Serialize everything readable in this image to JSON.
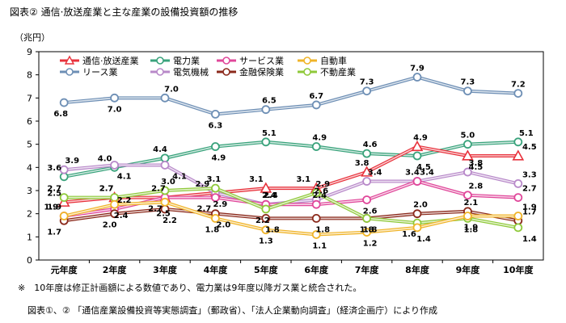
{
  "header": {
    "title": "図表② 通信·放送産業と主な産業の設備投資額の推移",
    "unit": "（兆円）"
  },
  "notes": {
    "note1": "※　10年度は修正計画額による数値であり、電力業は9年度以降ガス業と統合された。",
    "note2": "図表①、② 「通信産業設備投資等実態調査」（郵政省）、「法人企業動向調査」（経済企画庁）により作成"
  },
  "chart_data": {
    "type": "line",
    "title": "図表② 通信·放送産業と主な産業の設備投資額の推移",
    "ylabel": "（兆円）",
    "xlabel": "",
    "ylim": [
      0,
      9
    ],
    "yticks": [
      0,
      1,
      2,
      3,
      4,
      5,
      6,
      7,
      8,
      9
    ],
    "grid": false,
    "legend_position": "top-left",
    "categories": [
      "元年度",
      "2年度",
      "3年度",
      "4年度",
      "5年度",
      "6年度",
      "7年度",
      "8年度",
      "9年度",
      "10年度"
    ],
    "series": [
      {
        "name": "リース業",
        "color": "#6e8fb5",
        "marker": "circle",
        "values": [
          6.8,
          7.0,
          7.0,
          6.3,
          6.5,
          6.7,
          7.3,
          7.9,
          7.3,
          7.2
        ]
      },
      {
        "name": "電力業",
        "color": "#3aa37c",
        "marker": "circle",
        "values": [
          3.6,
          4.0,
          4.4,
          4.9,
          5.1,
          4.9,
          4.6,
          4.5,
          5.0,
          5.1
        ]
      },
      {
        "name": "通信·放送産業",
        "color": "#e8323c",
        "marker": "triangle",
        "values": [
          2.5,
          2.7,
          2.7,
          2.9,
          3.1,
          3.1,
          3.8,
          4.9,
          4.5,
          4.5
        ]
      },
      {
        "name": "電気機械",
        "color": "#b889c9",
        "marker": "circle",
        "values": [
          3.9,
          4.1,
          4.1,
          2.9,
          2.4,
          2.6,
          3.4,
          3.4,
          3.8,
          3.3
        ]
      },
      {
        "name": "サービス業",
        "color": "#e0479a",
        "marker": "circle",
        "values": [
          1.9,
          2.2,
          2.7,
          2.7,
          2.4,
          2.4,
          2.6,
          3.4,
          2.8,
          2.7
        ]
      },
      {
        "name": "金融保険業",
        "color": "#8b2a1c",
        "marker": "circle",
        "values": [
          1.7,
          2.0,
          2.2,
          2.0,
          1.8,
          1.8,
          1.8,
          2.0,
          2.1,
          1.7
        ]
      },
      {
        "name": "不動産業",
        "color": "#8fc93a",
        "marker": "circle",
        "values": [
          2.7,
          2.7,
          3.0,
          3.1,
          2.2,
          2.9,
          1.8,
          1.6,
          1.8,
          1.4
        ]
      },
      {
        "name": "自動車",
        "color": "#f0b429",
        "marker": "circle",
        "values": [
          1.9,
          2.4,
          2.5,
          1.8,
          1.3,
          1.1,
          1.2,
          1.4,
          1.9,
          1.9
        ]
      }
    ],
    "legend_order": [
      "通信·放送産業",
      "電力業",
      "サービス業",
      "自動車",
      "リース業",
      "電気機械",
      "金融保険業",
      "不動産業"
    ]
  }
}
